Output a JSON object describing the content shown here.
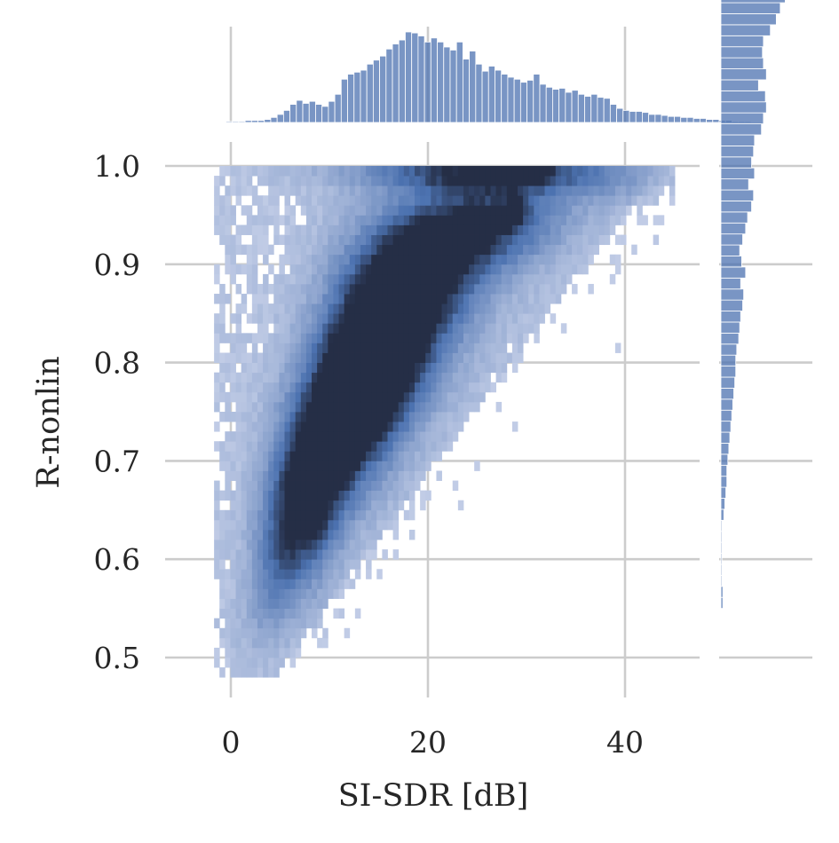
{
  "chart_data": {
    "type": "heatmap",
    "subtype": "joint-plot (2D histogram with marginal histograms)",
    "xlabel": "SI-SDR [dB]",
    "ylabel": "R-nonlin",
    "x_ticks": [
      0,
      20,
      40
    ],
    "y_ticks": [
      0.5,
      0.6,
      0.7,
      0.8,
      0.9,
      1.0
    ],
    "y_tick_labels": [
      "0.5",
      "0.6",
      "0.7",
      "0.8",
      "0.9",
      "1.0"
    ],
    "xlim": [
      -6.5,
      47.5
    ],
    "ylim": [
      0.455,
      1.025
    ],
    "grid": true,
    "color": "#4c72b0",
    "hist2d_bin_width": {
      "x": 0.55,
      "y": 0.01
    },
    "hist2d_max_count": 25,
    "density_ridge": [
      {
        "x": 2.0,
        "y": 0.52,
        "spread_x": 1.5,
        "spread_y": 0.03,
        "weight": 1
      },
      {
        "x": 4.0,
        "y": 0.57,
        "spread_x": 1.8,
        "spread_y": 0.04,
        "weight": 3
      },
      {
        "x": 5.5,
        "y": 0.62,
        "spread_x": 2.5,
        "spread_y": 0.05,
        "weight": 4
      },
      {
        "x": 7.5,
        "y": 0.65,
        "spread_x": 2.5,
        "spread_y": 0.05,
        "weight": 6
      },
      {
        "x": 9.0,
        "y": 0.7,
        "spread_x": 3.0,
        "spread_y": 0.05,
        "weight": 6
      },
      {
        "x": 11.5,
        "y": 0.74,
        "spread_x": 3.5,
        "spread_y": 0.05,
        "weight": 7
      },
      {
        "x": 13.5,
        "y": 0.78,
        "spread_x": 3.5,
        "spread_y": 0.05,
        "weight": 7
      },
      {
        "x": 15.5,
        "y": 0.82,
        "spread_x": 4.0,
        "spread_y": 0.05,
        "weight": 7
      },
      {
        "x": 17.5,
        "y": 0.86,
        "spread_x": 4.5,
        "spread_y": 0.05,
        "weight": 6
      },
      {
        "x": 20.0,
        "y": 0.9,
        "spread_x": 5.0,
        "spread_y": 0.04,
        "weight": 6
      },
      {
        "x": 24.0,
        "y": 0.93,
        "spread_x": 5.0,
        "spread_y": 0.03,
        "weight": 5
      },
      {
        "x": 28.5,
        "y": 0.95,
        "spread_x": 5.0,
        "spread_y": 0.03,
        "weight": 4
      },
      {
        "x": 25.0,
        "y": 0.99,
        "spread_x": 9.0,
        "spread_y": 0.015,
        "weight": 8
      },
      {
        "x": 38.0,
        "y": 0.98,
        "spread_x": 5.0,
        "spread_y": 0.02,
        "weight": 2
      }
    ],
    "hotspots": [
      {
        "x": 7.5,
        "y": 0.64
      },
      {
        "x": 12.0,
        "y": 0.735
      },
      {
        "x": 14.0,
        "y": 0.78
      },
      {
        "x": 15.5,
        "y": 0.82
      },
      {
        "x": 17.5,
        "y": 0.855
      },
      {
        "x": 20.0,
        "y": 0.895
      },
      {
        "x": 24.5,
        "y": 0.93
      },
      {
        "x": 28.5,
        "y": 0.95
      },
      {
        "x": 25.5,
        "y": 0.995
      },
      {
        "x": 27.5,
        "y": 0.995
      },
      {
        "x": 31.0,
        "y": 0.995
      }
    ],
    "marginal_x": {
      "bin_edges_start": -0.5,
      "bin_width": 0.65,
      "counts": [
        1,
        1,
        1,
        2,
        2,
        2,
        3,
        5,
        8,
        12,
        18,
        22,
        19,
        21,
        18,
        16,
        21,
        28,
        43,
        48,
        50,
        52,
        58,
        62,
        66,
        73,
        78,
        82,
        90,
        89,
        86,
        80,
        84,
        80,
        75,
        72,
        80,
        63,
        71,
        58,
        51,
        56,
        52,
        48,
        45,
        43,
        40,
        42,
        48,
        38,
        35,
        33,
        34,
        30,
        32,
        28,
        26,
        28,
        25,
        24,
        18,
        14,
        12,
        11,
        11,
        10,
        8,
        8,
        7,
        6,
        6,
        5,
        5,
        4,
        4,
        3,
        3,
        2,
        2,
        1,
        1,
        1
      ]
    },
    "marginal_y": {
      "bin_edges_start": 0.55,
      "bin_width": 0.0112,
      "counts": [
        2,
        2,
        1,
        1,
        1,
        1,
        1,
        1,
        3,
        4,
        5,
        6,
        6,
        7,
        8,
        9,
        10,
        11,
        12,
        13,
        14,
        15,
        15,
        16,
        18,
        19,
        20,
        22,
        23,
        20,
        25,
        21,
        19,
        22,
        25,
        27,
        31,
        33,
        28,
        34,
        31,
        33,
        34,
        41,
        43,
        46,
        45,
        38,
        46,
        43,
        42,
        43,
        50,
        56,
        60,
        65,
        88
      ]
    }
  }
}
